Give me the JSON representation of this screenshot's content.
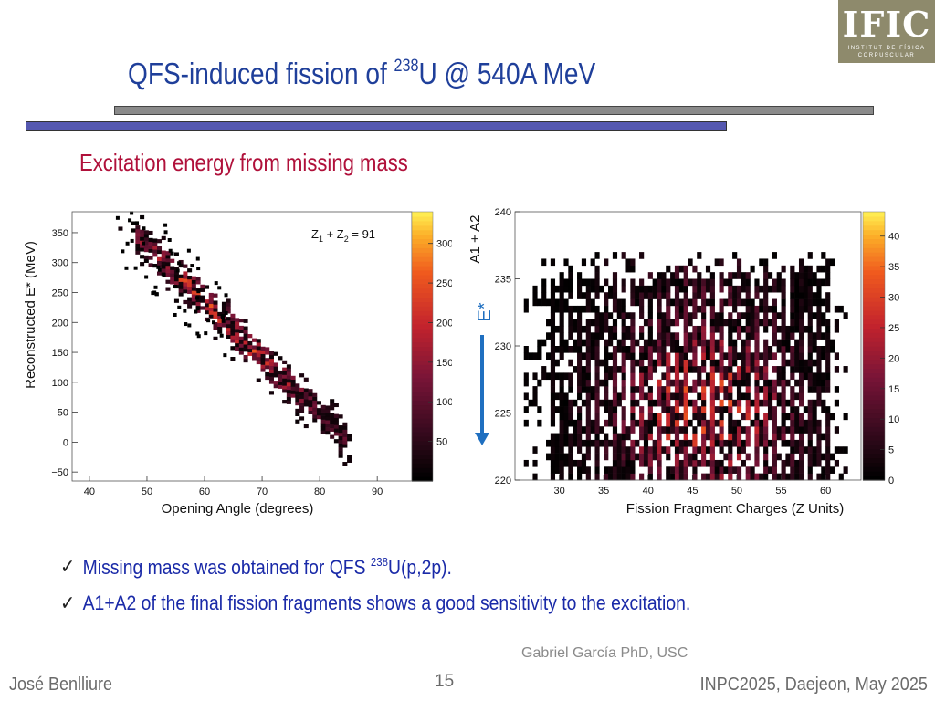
{
  "slide": {
    "title_main": "QFS-induced fission of ",
    "title_sup": "238",
    "title_tail": "U @ 540A MeV",
    "subtitle": "Excitation energy from missing mass",
    "logo": {
      "text": "IFIC",
      "line1": "INSTITUT DE FÍSICA",
      "line2": "CORPUSCULAR"
    },
    "bullets": [
      {
        "pre": "Missing mass was obtained for QFS ",
        "sup": "238",
        "post": "U(p,2p)."
      },
      {
        "pre": "A1+A2 of the final fission fragments shows a good sensitivity to the excitation.",
        "sup": "",
        "post": ""
      }
    ],
    "credit": "Gabriel García PhD, USC",
    "footer": {
      "left": "José Benlliure",
      "page": "15",
      "right": "INPC2025, Daejeon, May 2025"
    }
  },
  "colors": {
    "title": "#1f3f9a",
    "subtitle": "#b0103a",
    "bullets": "#1a2aa8",
    "arrow": "#1f6fc0",
    "estar": "#1f6fc0"
  },
  "chart_data": [
    {
      "type": "heatmap",
      "xlabel": "Opening Angle (degrees)",
      "ylabel": "Reconstructed E* (MeV)",
      "annotation": {
        "base": "Z",
        "s1": "1",
        "mid": " + Z",
        "s2": "2",
        "tail": " = 91"
      },
      "xlim": [
        37,
        96
      ],
      "ylim": [
        -65,
        385
      ],
      "xticks": [
        "40",
        "50",
        "60",
        "70",
        "80",
        "90"
      ],
      "yticks": [
        "−50",
        "0",
        "50",
        "100",
        "150",
        "200",
        "250",
        "300",
        "350"
      ],
      "colorbar": {
        "ticks": [
          "50",
          "100",
          "150",
          "200",
          "250",
          "300"
        ],
        "range": [
          0,
          340
        ]
      },
      "distribution": {
        "x_start": 48,
        "x_end": 84,
        "e_at_start": 340,
        "e_at_end": 5,
        "band_width_mev": 55
      },
      "grid": false
    },
    {
      "type": "heatmap",
      "xlabel": "Fission Fragment Charges (Z Units)",
      "ylabel": "A1 + A2",
      "annotation": "E*",
      "xlim": [
        25,
        64
      ],
      "ylim": [
        220,
        240
      ],
      "xticks": [
        "30",
        "35",
        "40",
        "45",
        "50",
        "55",
        "60"
      ],
      "yticks": [
        "220",
        "225",
        "230",
        "235",
        "240"
      ],
      "colorbar": {
        "ticks": [
          "0",
          "5",
          "10",
          "15",
          "20",
          "25",
          "30",
          "35",
          "40"
        ],
        "range": [
          0,
          44
        ]
      },
      "distribution": {
        "z_min": 28,
        "z_max": 62,
        "peak_z": 46,
        "a_min": 220,
        "a_max": 237
      },
      "grid": false
    }
  ]
}
